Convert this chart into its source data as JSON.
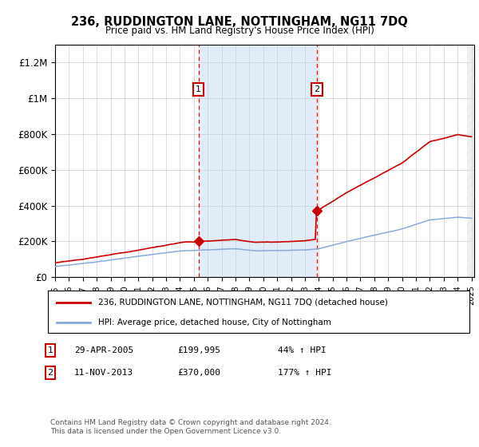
{
  "title": "236, RUDDINGTON LANE, NOTTINGHAM, NG11 7DQ",
  "subtitle": "Price paid vs. HM Land Registry's House Price Index (HPI)",
  "legend_property": "236, RUDDINGTON LANE, NOTTINGHAM, NG11 7DQ (detached house)",
  "legend_hpi": "HPI: Average price, detached house, City of Nottingham",
  "footer": "Contains HM Land Registry data © Crown copyright and database right 2024.\nThis data is licensed under the Open Government Licence v3.0.",
  "color_property": "#cc0000",
  "color_hpi": "#88aadd",
  "color_shading": "#e0ecf8",
  "ylim": [
    0,
    1300000
  ],
  "yticks": [
    0,
    200000,
    400000,
    600000,
    800000,
    1000000,
    1200000
  ],
  "ytick_labels": [
    "£0",
    "£200K",
    "£400K",
    "£600K",
    "£800K",
    "£1M",
    "£1.2M"
  ],
  "x_start_year": 1995,
  "x_end_year": 2025,
  "t1_year": 2005.33,
  "t2_year": 2013.875,
  "price1": 199995,
  "price2": 370000,
  "label1_date": "29-APR-2005",
  "label1_price": "£199,995",
  "label1_hpi": "44% ↑ HPI",
  "label2_date": "11-NOV-2013",
  "label2_price": "£370,000",
  "label2_hpi": "177% ↑ HPI"
}
